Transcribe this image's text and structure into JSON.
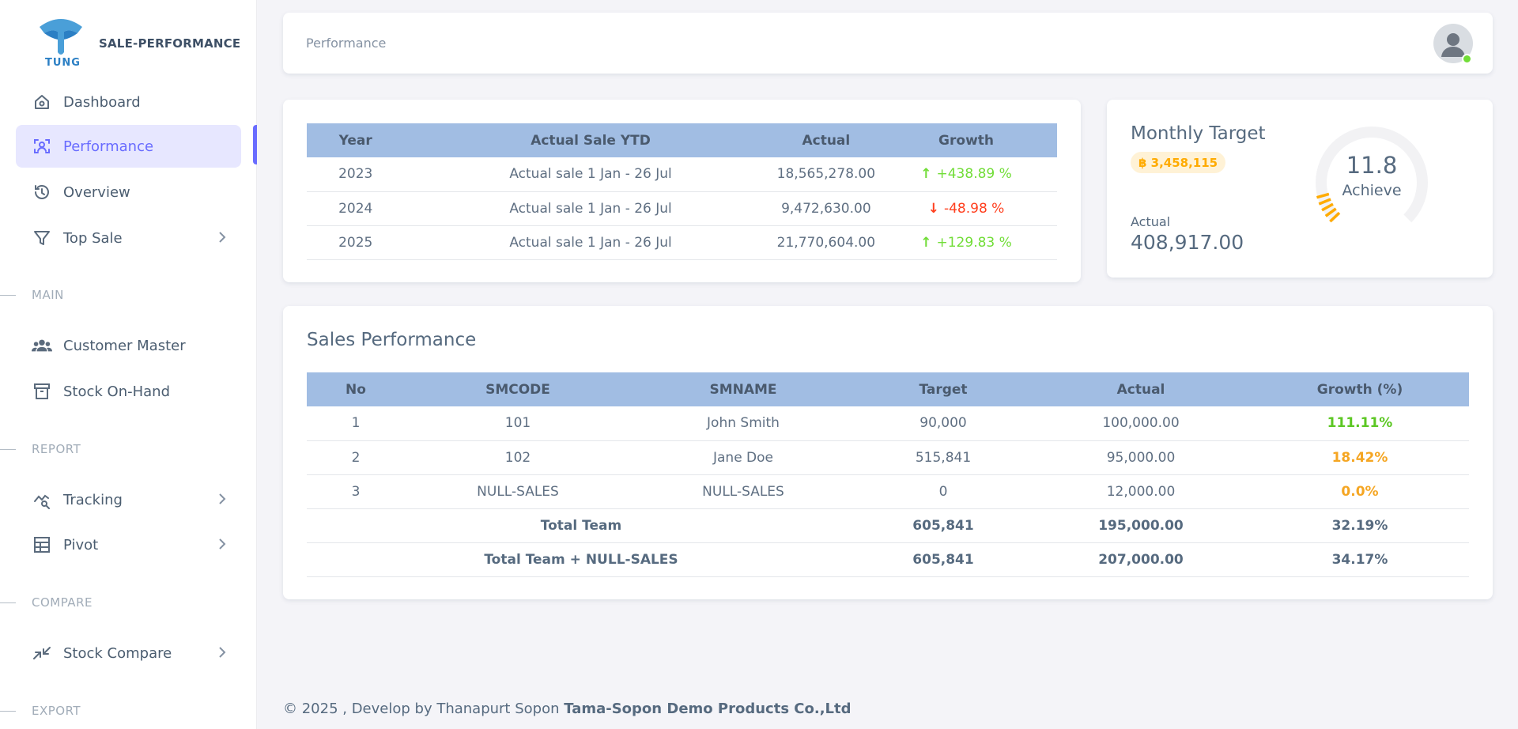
{
  "brand": {
    "logo_text": "TUNG",
    "name": "SALE-PERFORMANCE"
  },
  "sidebar": {
    "items": [
      {
        "label": "Dashboard",
        "icon": "home-icon"
      },
      {
        "label": "Performance",
        "icon": "performance-icon",
        "active": true
      },
      {
        "label": "Overview",
        "icon": "history-icon"
      },
      {
        "label": "Top Sale",
        "icon": "filter-icon"
      }
    ],
    "sections": {
      "main": "MAIN",
      "report": "REPORT",
      "compare": "COMPARE",
      "export": "EXPORT"
    },
    "main_items": [
      {
        "label": "Customer Master",
        "icon": "users-icon"
      },
      {
        "label": "Stock On-Hand",
        "icon": "archive-icon"
      }
    ],
    "report_items": [
      {
        "label": "Tracking",
        "icon": "chart-search-icon"
      },
      {
        "label": "Pivot",
        "icon": "table-icon"
      }
    ],
    "compare_items": [
      {
        "label": "Stock Compare",
        "icon": "compare-arrows-icon"
      }
    ]
  },
  "navbar": {
    "breadcrumb": "Performance"
  },
  "ytd": {
    "headers": [
      "Year",
      "Actual Sale YTD",
      "Actual",
      "Growth"
    ],
    "rows": [
      {
        "year": "2023",
        "label": "Actual sale 1 Jan - 26 Jul",
        "actual": "18,565,278.00",
        "growth": "+438.89 %",
        "dir": "up"
      },
      {
        "year": "2024",
        "label": "Actual sale 1 Jan - 26 Jul",
        "actual": "9,472,630.00",
        "growth": "-48.98 %",
        "dir": "down"
      },
      {
        "year": "2025",
        "label": "Actual sale 1 Jan - 26 Jul",
        "actual": "21,770,604.00",
        "growth": "+129.83 %",
        "dir": "up"
      }
    ]
  },
  "monthly_target": {
    "title": "Monthly Target",
    "target": "฿ 3,458,115",
    "actual_label": "Actual",
    "actual_value": "408,917.00",
    "achieve_value": "11.8",
    "achieve_label": "Achieve",
    "achieve_percent": 11.8
  },
  "sales_performance": {
    "title": "Sales Performance",
    "headers": [
      "No",
      "SMCODE",
      "SMNAME",
      "Target",
      "Actual",
      "Growth (%)"
    ],
    "rows": [
      {
        "no": "1",
        "smcode": "101",
        "smname": "John Smith",
        "target": "90,000",
        "actual": "100,000.00",
        "growth": "111.11%",
        "level": "good"
      },
      {
        "no": "2",
        "smcode": "102",
        "smname": "Jane Doe",
        "target": "515,841",
        "actual": "95,000.00",
        "growth": "18.42%",
        "level": "warn"
      },
      {
        "no": "3",
        "smcode": "NULL-SALES",
        "smname": "NULL-SALES",
        "target": "0",
        "actual": "12,000.00",
        "growth": "0.0%",
        "level": "warn"
      }
    ],
    "totals": [
      {
        "label": "Total Team",
        "target": "605,841",
        "actual": "195,000.00",
        "growth": "32.19%"
      },
      {
        "label": "Total Team + NULL-SALES",
        "target": "605,841",
        "actual": "207,000.00",
        "growth": "34.17%"
      }
    ]
  },
  "footer": {
    "text": "© 2025 , Develop by Thanapurt Sopon",
    "company": "Tama-Sopon Demo Products Co.,Ltd"
  },
  "colors": {
    "accent": "#696cff",
    "table_header": "#a1bde3",
    "growth_up": "#71dd37",
    "growth_down": "#ff3e1d",
    "warning": "#ffab00"
  }
}
